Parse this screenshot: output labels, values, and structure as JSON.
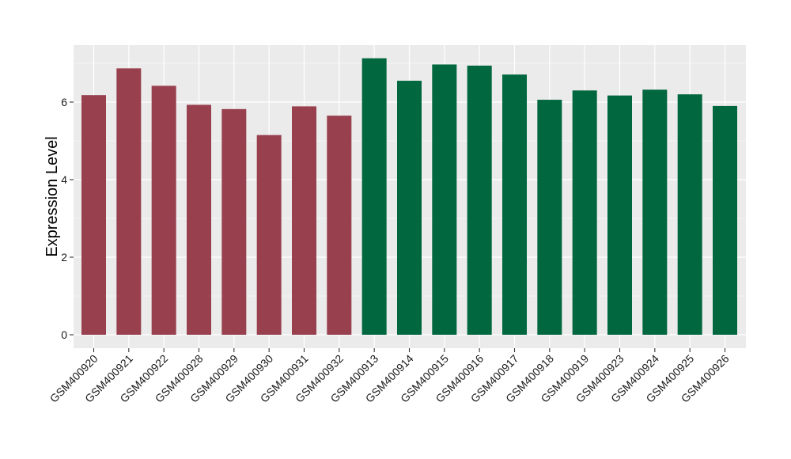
{
  "chart_data": {
    "type": "bar",
    "title": "",
    "xlabel": "",
    "ylabel": "Expression Level",
    "ylim": [
      -0.35,
      7.45
    ],
    "yticks": [
      0,
      2,
      4,
      6
    ],
    "grid": true,
    "categories": [
      "GSM400920",
      "GSM400921",
      "GSM400922",
      "GSM400928",
      "GSM400929",
      "GSM400930",
      "GSM400931",
      "GSM400932",
      "GSM400913",
      "GSM400914",
      "GSM400915",
      "GSM400916",
      "GSM400917",
      "GSM400918",
      "GSM400919",
      "GSM400923",
      "GSM400924",
      "GSM400925",
      "GSM400926"
    ],
    "values": [
      6.18,
      6.87,
      6.42,
      5.93,
      5.82,
      5.15,
      5.89,
      5.65,
      7.13,
      6.55,
      6.97,
      6.94,
      6.71,
      6.06,
      6.3,
      6.17,
      6.32,
      6.2,
      5.9
    ],
    "groups": [
      "g1",
      "g1",
      "g1",
      "g1",
      "g1",
      "g1",
      "g1",
      "g1",
      "g2",
      "g2",
      "g2",
      "g2",
      "g2",
      "g2",
      "g2",
      "g2",
      "g2",
      "g2",
      "g2"
    ],
    "group_colors": {
      "g1": "#98404E",
      "g2": "#00673F"
    },
    "panel_background": "#EBEBEB",
    "gridline_color": "#FFFFFF"
  }
}
